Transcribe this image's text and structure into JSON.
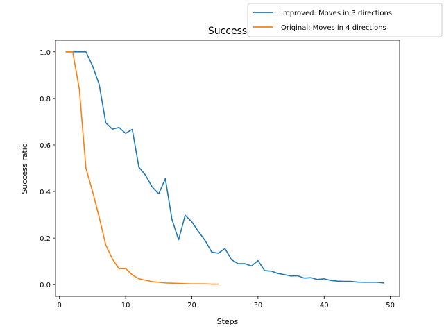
{
  "chart_data": {
    "type": "line",
    "title": "Success",
    "xlabel": "Steps",
    "ylabel": "Success ratio",
    "xlim": [
      -0.6,
      51.4
    ],
    "ylim": [
      -0.05,
      1.05
    ],
    "xticks": [
      0,
      10,
      20,
      30,
      40,
      50
    ],
    "yticks": [
      0.0,
      0.2,
      0.4,
      0.6,
      0.8,
      1.0
    ],
    "grid": false,
    "legend_position": "upper-right, outside axes",
    "series": [
      {
        "name": "Improved: Moves in 3 directions",
        "color": "#1f77b4",
        "x": [
          1,
          2,
          3,
          4,
          5,
          6,
          7,
          8,
          9,
          10,
          11,
          12,
          13,
          14,
          15,
          16,
          17,
          18,
          19,
          20,
          21,
          22,
          23,
          24,
          25,
          26,
          27,
          28,
          29,
          30,
          31,
          32,
          33,
          34,
          35,
          36,
          37,
          38,
          39,
          40,
          41,
          42,
          43,
          44,
          45,
          46,
          47,
          48,
          49
        ],
        "y": [
          1.0,
          1.0,
          1.0,
          1.0,
          0.94,
          0.86,
          0.695,
          0.668,
          0.675,
          0.65,
          0.667,
          0.505,
          0.47,
          0.42,
          0.39,
          0.455,
          0.28,
          0.193,
          0.298,
          0.27,
          0.228,
          0.19,
          0.14,
          0.135,
          0.155,
          0.107,
          0.09,
          0.09,
          0.08,
          0.103,
          0.06,
          0.058,
          0.048,
          0.043,
          0.037,
          0.038,
          0.028,
          0.03,
          0.022,
          0.025,
          0.018,
          0.015,
          0.014,
          0.014,
          0.011,
          0.01,
          0.01,
          0.01,
          0.007
        ]
      },
      {
        "name": "Original: Moves in 4 directions",
        "color": "#ff7f0e",
        "x": [
          1,
          2,
          3,
          4,
          5,
          6,
          7,
          8,
          9,
          10,
          11,
          12,
          13,
          14,
          15,
          16,
          17,
          18,
          19,
          20,
          21,
          22,
          23,
          24
        ],
        "y": [
          1.0,
          1.0,
          0.84,
          0.5,
          0.4,
          0.29,
          0.17,
          0.11,
          0.068,
          0.069,
          0.042,
          0.025,
          0.019,
          0.013,
          0.01,
          0.007,
          0.006,
          0.005,
          0.004,
          0.003,
          0.003,
          0.003,
          0.002,
          0.002
        ]
      }
    ]
  }
}
